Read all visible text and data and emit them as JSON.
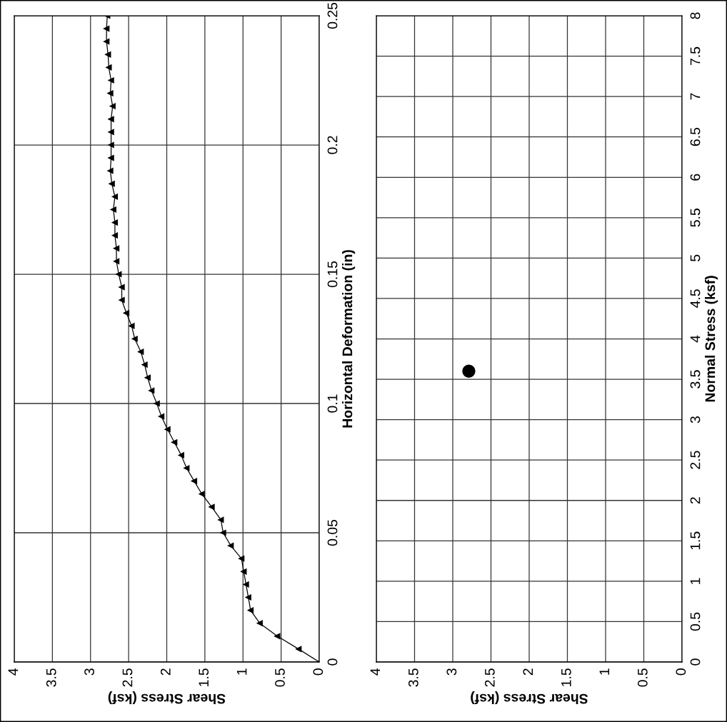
{
  "chart_data": [
    {
      "type": "line",
      "xlabel": "Shear Stress (ksf)",
      "ylabel": "Horizontal Deformation (in)",
      "xlim": [
        4,
        0
      ],
      "xticks": [
        0,
        0.5,
        1,
        1.5,
        2,
        2.5,
        3,
        3.5,
        4
      ],
      "ylim": [
        0,
        0.25
      ],
      "yticks": [
        0,
        0.05,
        0.1,
        0.15,
        0.2,
        0.25
      ],
      "grid": true,
      "marker": "triangle",
      "line_style": "solid",
      "series": [
        {
          "color": "#000000",
          "x": [
            0,
            0.27,
            0.55,
            0.78,
            0.9,
            0.93,
            0.96,
            0.99,
            1.02,
            1.16,
            1.26,
            1.29,
            1.41,
            1.54,
            1.64,
            1.74,
            1.81,
            1.9,
            1.99,
            2.07,
            2.13,
            2.2,
            2.25,
            2.29,
            2.34,
            2.42,
            2.46,
            2.53,
            2.59,
            2.59,
            2.63,
            2.66,
            2.66,
            2.68,
            2.68,
            2.7,
            2.68,
            2.72,
            2.74,
            2.73,
            2.73,
            2.73,
            2.73,
            2.71,
            2.74,
            2.73,
            2.76,
            2.77,
            2.79,
            2.79,
            2.78
          ],
          "values": [
            0,
            0.005,
            0.01,
            0.015,
            0.02,
            0.025,
            0.03,
            0.035,
            0.04,
            0.045,
            0.05,
            0.055,
            0.06,
            0.065,
            0.07,
            0.075,
            0.08,
            0.085,
            0.09,
            0.095,
            0.1,
            0.105,
            0.11,
            0.115,
            0.12,
            0.125,
            0.13,
            0.135,
            0.14,
            0.145,
            0.15,
            0.155,
            0.16,
            0.165,
            0.17,
            0.175,
            0.18,
            0.185,
            0.19,
            0.195,
            0.2,
            0.205,
            0.21,
            0.215,
            0.22,
            0.225,
            0.23,
            0.235,
            0.24,
            0.245,
            0.25
          ]
        }
      ]
    },
    {
      "type": "scatter",
      "xlabel": "Shear Stress (ksf)",
      "ylabel": "Normal Stress (ksf)",
      "xlim": [
        4,
        0
      ],
      "xticks": [
        0,
        0.5,
        1,
        1.5,
        2,
        2.5,
        3,
        3.5,
        4
      ],
      "ylim": [
        0,
        8
      ],
      "yticks": [
        0,
        0.5,
        1,
        1.5,
        2,
        2.5,
        3,
        3.5,
        4,
        4.5,
        5,
        5.5,
        6,
        6.5,
        7,
        7.5,
        8
      ],
      "grid": true,
      "marker": "circle",
      "series": [
        {
          "color": "#000000",
          "x": [
            2.79
          ],
          "values": [
            3.6
          ]
        }
      ]
    }
  ]
}
